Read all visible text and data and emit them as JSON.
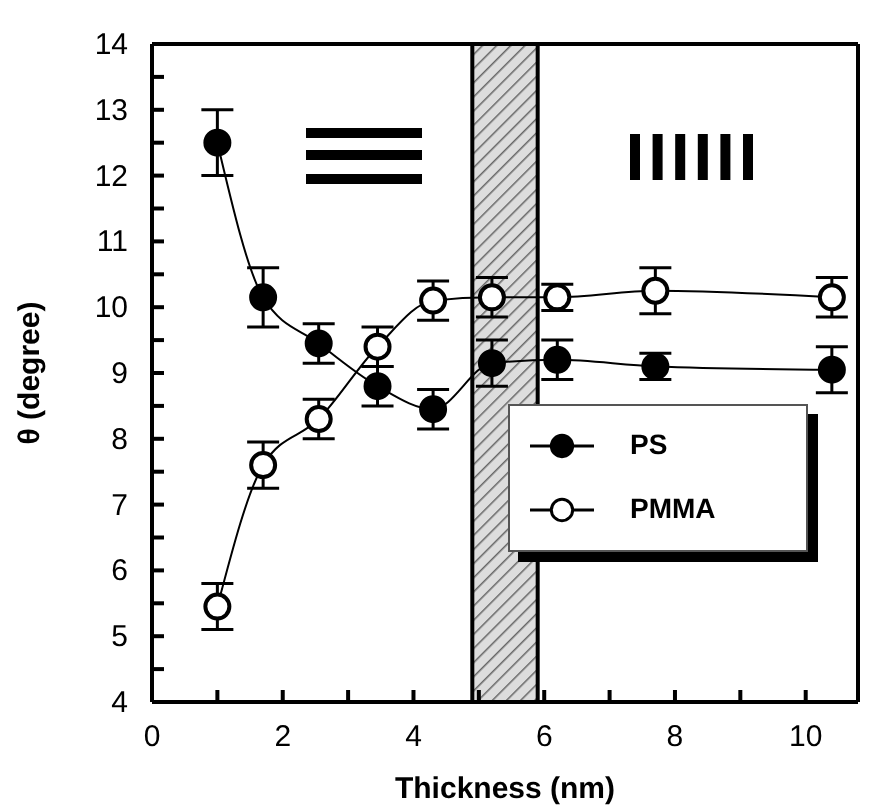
{
  "chart_data": {
    "type": "line",
    "xlabel": "Thickness (nm)",
    "ylabel": "θ (degree)",
    "xlim": [
      0,
      10.8
    ],
    "xticks": [
      0,
      {
        "value": 1,
        "label": null
      },
      2,
      {
        "value": 3,
        "label": null
      },
      4,
      {
        "value": 5,
        "label": null
      },
      6,
      {
        "value": 7,
        "label": null
      },
      8,
      {
        "value": 9,
        "label": null
      },
      10
    ],
    "ylim": [
      4,
      14
    ],
    "yticks": [
      4,
      {
        "value": 4.5,
        "label": null
      },
      5,
      {
        "value": 5.5,
        "label": null
      },
      6,
      {
        "value": 6.5,
        "label": null
      },
      7,
      {
        "value": 7.5,
        "label": null
      },
      8,
      {
        "value": 8.5,
        "label": null
      },
      9,
      {
        "value": 9.5,
        "label": null
      },
      10,
      {
        "value": 10.5,
        "label": null
      },
      11,
      {
        "value": 11.5,
        "label": null
      },
      12,
      {
        "value": 12.5,
        "label": null
      },
      13,
      {
        "value": 13.5,
        "label": null
      },
      14
    ],
    "x": [
      1.0,
      1.7,
      2.55,
      3.45,
      4.3,
      5.2,
      6.2,
      7.7,
      10.4
    ],
    "series": [
      {
        "name": "PS",
        "color": "#000000",
        "values": [
          12.5,
          10.15,
          9.45,
          8.8,
          8.45,
          9.15,
          9.2,
          9.1,
          9.05
        ],
        "errors": [
          0.5,
          0.45,
          0.3,
          0.3,
          0.3,
          0.35,
          0.3,
          0.2,
          0.35
        ]
      },
      {
        "name": "PMMA",
        "color": "#000000",
        "values": [
          5.45,
          7.6,
          8.3,
          9.4,
          10.1,
          10.15,
          10.15,
          10.25,
          10.15
        ],
        "errors": [
          0.35,
          0.35,
          0.3,
          0.3,
          0.3,
          0.3,
          0.2,
          0.35,
          0.3
        ]
      }
    ],
    "bands": [
      {
        "axis": "x",
        "from": 4.9,
        "to": 5.9
      }
    ],
    "marker": "circle",
    "legend": "bottom right",
    "grid": false
  }
}
